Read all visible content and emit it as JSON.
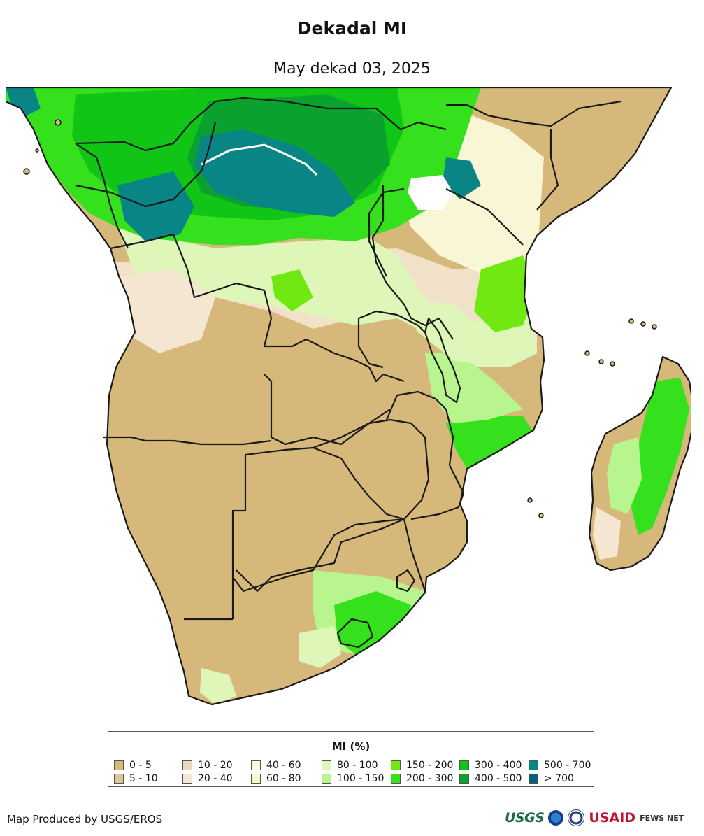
{
  "title": "Dekadal MI",
  "subtitle": "May dekad 03, 2025",
  "legend": {
    "title": "MI (%)",
    "items": [
      {
        "label": "0 - 5",
        "color": "#d6b97a"
      },
      {
        "label": "5 - 10",
        "color": "#dcc596"
      },
      {
        "label": "10 - 20",
        "color": "#ecd7b8"
      },
      {
        "label": "20 - 40",
        "color": "#f5e6d2"
      },
      {
        "label": "40 - 60",
        "color": "#fdfde0"
      },
      {
        "label": "60 - 80",
        "color": "#f6fcc6"
      },
      {
        "label": "80 - 100",
        "color": "#def7b8"
      },
      {
        "label": "100 - 150",
        "color": "#b9f58f"
      },
      {
        "label": "150 - 200",
        "color": "#72e813"
      },
      {
        "label": "200 - 300",
        "color": "#35e01c"
      },
      {
        "label": "300 - 400",
        "color": "#10c516"
      },
      {
        "label": "400 - 500",
        "color": "#0ba12f"
      },
      {
        "label": "500 - 700",
        "color": "#0a8585"
      },
      {
        "label": "> 700",
        "color": "#0a5f7c"
      }
    ]
  },
  "footer": {
    "credit": "Map Produced by USGS/EROS",
    "logos": [
      "USGS",
      "NOAA",
      "DOS",
      "USAID",
      "FEWS NET"
    ]
  }
}
